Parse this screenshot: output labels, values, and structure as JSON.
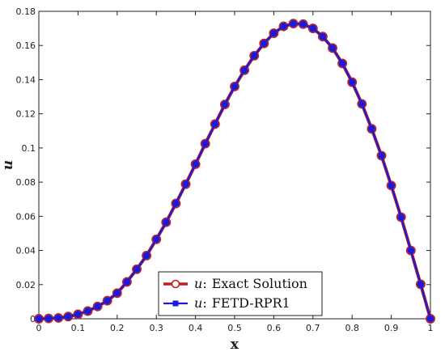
{
  "chart_data": {
    "type": "line",
    "xlabel": "x",
    "ylabel": "u",
    "xlim": [
      0,
      1
    ],
    "ylim": [
      0,
      0.18
    ],
    "x_ticks": [
      "0",
      "0.1",
      "0.2",
      "0.3",
      "0.4",
      "0.5",
      "0.6",
      "0.7",
      "0.8",
      "0.9",
      "1"
    ],
    "y_ticks": [
      "0",
      "0.02",
      "0.04",
      "0.06",
      "0.08",
      "0.1",
      "0.12",
      "0.14",
      "0.16",
      "0.18"
    ],
    "grid": false,
    "legend_position": "bottom-center",
    "x": [
      0,
      0.025,
      0.05,
      0.075,
      0.1,
      0.125,
      0.15,
      0.175,
      0.2,
      0.225,
      0.25,
      0.275,
      0.3,
      0.325,
      0.35,
      0.375,
      0.4,
      0.425,
      0.45,
      0.475,
      0.5,
      0.525,
      0.55,
      0.575,
      0.6,
      0.625,
      0.65,
      0.675,
      0.7,
      0.725,
      0.75,
      0.775,
      0.8,
      0.825,
      0.85,
      0.875,
      0.9,
      0.925,
      0.95,
      0.975,
      1
    ],
    "series": [
      {
        "name": "Exact Solution",
        "legend_symbol": "u",
        "legend_sep": ":",
        "color": "#c0201d",
        "marker": "circle",
        "values": [
          0,
          0.0002,
          0.0005,
          0.0013,
          0.0026,
          0.0045,
          0.0072,
          0.0106,
          0.015,
          0.0216,
          0.029,
          0.037,
          0.0465,
          0.0565,
          0.0675,
          0.0788,
          0.0905,
          0.1025,
          0.114,
          0.1255,
          0.136,
          0.1455,
          0.154,
          0.1612,
          0.1672,
          0.1712,
          0.1728,
          0.1725,
          0.17,
          0.1652,
          0.1585,
          0.1495,
          0.1385,
          0.1258,
          0.1112,
          0.0955,
          0.078,
          0.0595,
          0.04,
          0.0202,
          0
        ]
      },
      {
        "name": "FETD-RPR1",
        "legend_symbol": "u",
        "legend_sep": ":",
        "color": "#1a1adb",
        "marker": "square",
        "values": [
          0,
          0.0002,
          0.0005,
          0.0013,
          0.0026,
          0.0045,
          0.0072,
          0.0106,
          0.015,
          0.0216,
          0.029,
          0.037,
          0.0465,
          0.0565,
          0.0675,
          0.0788,
          0.0905,
          0.1025,
          0.114,
          0.1255,
          0.136,
          0.1455,
          0.154,
          0.1612,
          0.1672,
          0.1712,
          0.1728,
          0.1725,
          0.17,
          0.1652,
          0.1585,
          0.1495,
          0.1385,
          0.1258,
          0.1112,
          0.0955,
          0.078,
          0.0595,
          0.04,
          0.0202,
          0
        ]
      }
    ]
  }
}
